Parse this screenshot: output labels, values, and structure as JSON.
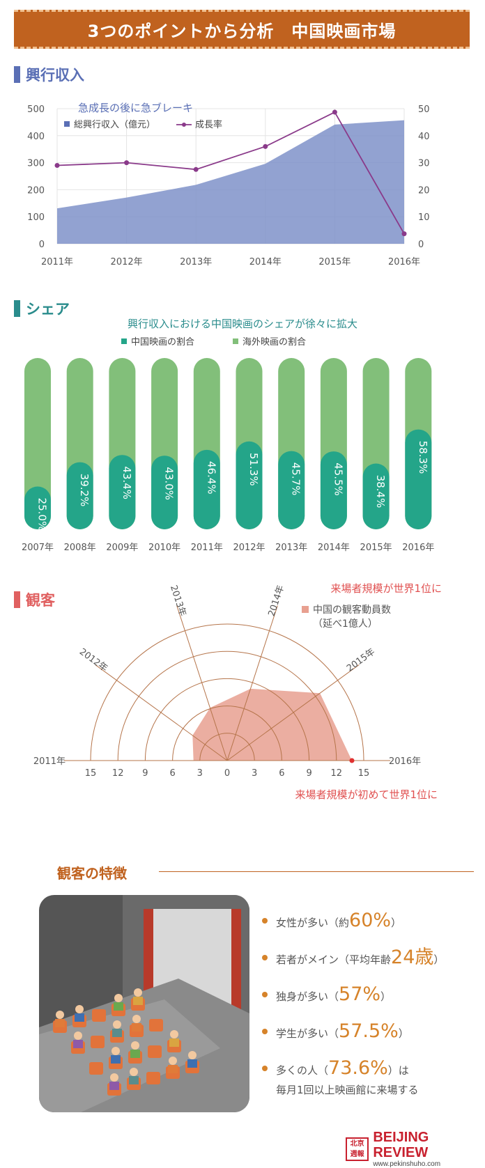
{
  "banner": {
    "title": "3つのポイントから分析　中国映画市場"
  },
  "sections": {
    "box_office": {
      "title": "興行収入",
      "color": "#5a6fb5"
    },
    "share": {
      "title": "シェア",
      "color": "#2a8c8c"
    },
    "audience": {
      "title": "観客",
      "color": "#e06060"
    }
  },
  "chart_data": [
    {
      "type": "area",
      "title": "急成長の後に急ブレーキ",
      "categories": [
        "2011年",
        "2012年",
        "2013年",
        "2014年",
        "2015年",
        "2016年"
      ],
      "series": [
        {
          "name": "総興行収入（億元）",
          "type": "area",
          "axis": "left",
          "color": "#7f92c9",
          "values": [
            131,
            171,
            218,
            296,
            441,
            457
          ]
        },
        {
          "name": "成長率",
          "type": "line",
          "axis": "right",
          "color": "#8a3a8a",
          "values": [
            29,
            30,
            27.5,
            36,
            48.7,
            3.7
          ]
        }
      ],
      "ylim_left": [
        0,
        500
      ],
      "left_ticks": [
        "0",
        "100",
        "200",
        "300",
        "400",
        "500"
      ],
      "ylim_right": [
        0,
        50
      ],
      "right_ticks": [
        "0",
        "10",
        "20",
        "30",
        "40",
        "50"
      ],
      "grid": true,
      "legend_position": "top-left"
    },
    {
      "type": "bar",
      "title": "興行収入における中国映画のシェアが徐々に拡大",
      "categories": [
        "2007年",
        "2008年",
        "2009年",
        "2010年",
        "2011年",
        "2012年",
        "2013年",
        "2014年",
        "2015年",
        "2016年"
      ],
      "series": [
        {
          "name": "中国映画の割合",
          "color": "#24a589",
          "values": [
            25.0,
            39.2,
            43.4,
            43.0,
            46.4,
            51.3,
            45.7,
            45.5,
            38.4,
            58.3
          ]
        },
        {
          "name": "海外映画の割合",
          "color": "#82bf7a"
        }
      ],
      "value_labels": [
        "25.0%",
        "39.2%",
        "43.4%",
        "43.0%",
        "46.4%",
        "51.3%",
        "45.7%",
        "45.5%",
        "38.4%",
        "58.3%"
      ],
      "ylim": [
        0,
        100
      ],
      "stacked": true,
      "legend_position": "top"
    },
    {
      "type": "area",
      "subtype": "polar",
      "categories": [
        "2011年",
        "2012年",
        "2013年",
        "2014年",
        "2015年",
        "2016年"
      ],
      "series": [
        {
          "name": "中国の観客動員数",
          "unit": "（延べ1億人）",
          "color": "#e8a090",
          "values": [
            3.7,
            4.7,
            6.1,
            8.3,
            12.6,
            13.7
          ]
        }
      ],
      "radial_ticks": [
        "15",
        "12",
        "9",
        "6",
        "3",
        "0",
        "3",
        "6",
        "9",
        "12",
        "15"
      ],
      "rlim": [
        0,
        15
      ],
      "annotations": [
        "来場者規模が世界1位に",
        "来場者規模が初めて世界1位に"
      ],
      "legend_position": "top-right"
    }
  ],
  "features": {
    "title": "観客の特徴",
    "items": [
      {
        "pre": "女性が多い（約",
        "value": "60%",
        "post": "）",
        "post2": ""
      },
      {
        "pre": "若者がメイン（平均年齢",
        "value": "24歳",
        "post": "）",
        "post2": ""
      },
      {
        "pre": "独身が多い（",
        "value": "57%",
        "post": "）",
        "post2": ""
      },
      {
        "pre": "学生が多い（",
        "value": "57.5%",
        "post": "）",
        "post2": ""
      },
      {
        "pre": "多くの人（",
        "value": "73.6%",
        "post": "）は",
        "post2": "毎月1回以上映画館に来場する"
      }
    ]
  },
  "logo": {
    "mark": "北京週報",
    "name": "BEIJING REVIEW",
    "url": "www.pekinshuho.com"
  }
}
